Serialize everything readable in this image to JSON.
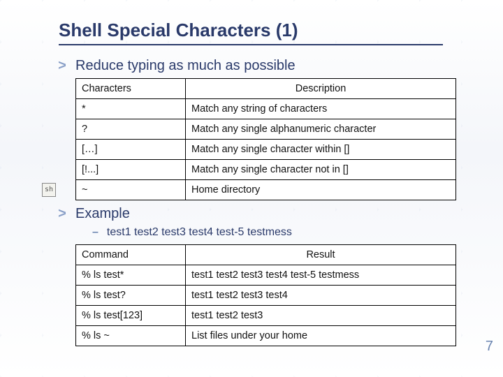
{
  "title": "Shell Special Characters (1)",
  "bullets": {
    "reduce": "Reduce typing as much as possible",
    "example": "Example",
    "example_files": "test1 test2 test3 test4 test-5 testmess"
  },
  "table1": {
    "headers": {
      "c1": "Characters",
      "c2": "Description"
    },
    "rows": [
      {
        "c1": "*",
        "c2": "Match any string of characters"
      },
      {
        "c1": "?",
        "c2": "Match any single alphanumeric character"
      },
      {
        "c1": "[…]",
        "c2": "Match any single character within []"
      },
      {
        "c1": "[!...]",
        "c2": "Match any single character not in []"
      },
      {
        "c1": "~",
        "c2": "Home directory"
      }
    ]
  },
  "table2": {
    "headers": {
      "c1": "Command",
      "c2": "Result"
    },
    "rows": [
      {
        "c1": "% ls test*",
        "c2": "test1 test2 test3 test4 test-5 testmess"
      },
      {
        "c1": "% ls test?",
        "c2": "test1 test2 test3 test4"
      },
      {
        "c1": "% ls test[123]",
        "c2": "test1 test2 test3"
      },
      {
        "c1": "% ls ~",
        "c2": "List files under your home"
      }
    ]
  },
  "icon_label": "sh",
  "page_number": "7",
  "colors": {
    "heading": "#2a3a6a",
    "chevron": "#8aa0c8",
    "border": "#000000",
    "pagenum": "#6a84b0",
    "bg": "#ffffff"
  },
  "fonts": {
    "title_size_pt": 20,
    "body_size_pt": 15,
    "table_size_pt": 11
  }
}
